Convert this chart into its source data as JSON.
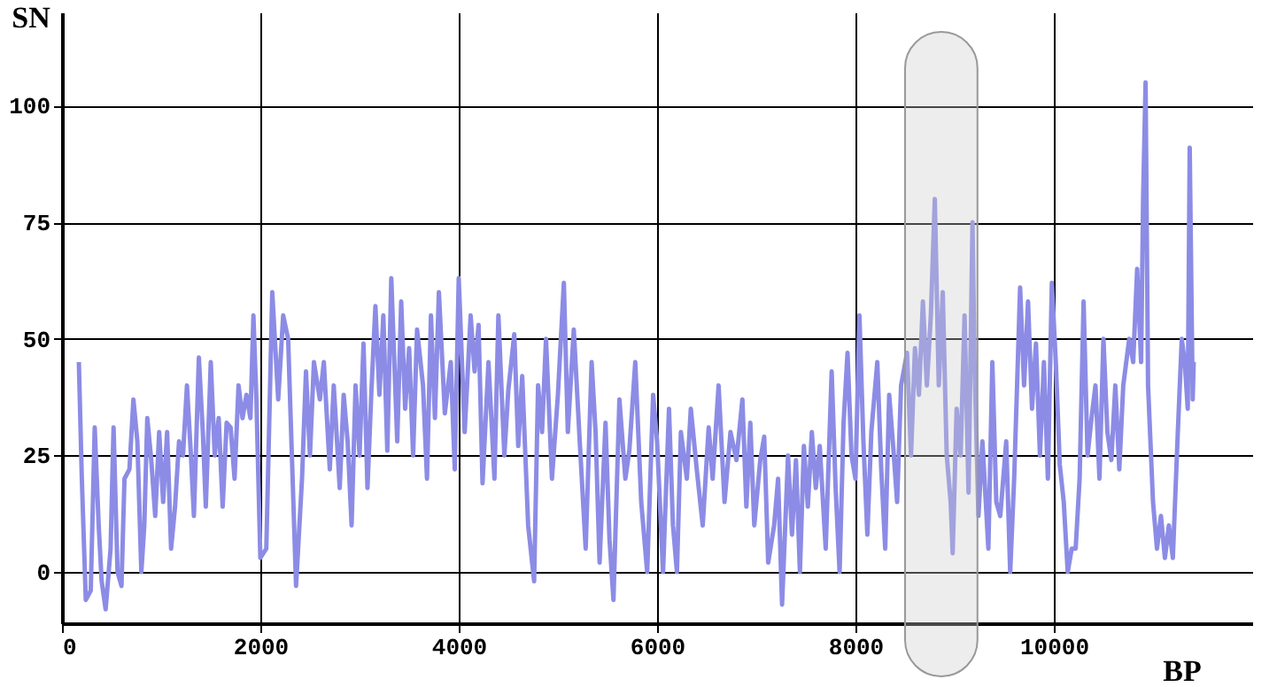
{
  "chart_data": {
    "type": "line",
    "xlabel": "BP",
    "ylabel": "SN",
    "xlim": [
      0,
      12000
    ],
    "xticks": [
      0,
      2000,
      4000,
      6000,
      8000,
      10000
    ],
    "ylim": [
      -11,
      120
    ],
    "yticks": [
      0,
      25,
      50,
      75,
      100
    ],
    "grid": true,
    "marker": "none",
    "line_style": "solid",
    "bands": [
      {
        "axis": "x",
        "from": 8500,
        "to": 9230,
        "color": "#cccccc"
      }
    ],
    "series": [
      {
        "color": "#8c8ce6",
        "x": [
          170,
          200,
          240,
          290,
          330,
          370,
          400,
          440,
          490,
          520,
          560,
          600,
          630,
          680,
          720,
          760,
          800,
          830,
          860,
          900,
          940,
          980,
          1020,
          1060,
          1100,
          1140,
          1180,
          1220,
          1260,
          1300,
          1330,
          1380,
          1420,
          1450,
          1500,
          1540,
          1580,
          1620,
          1660,
          1700,
          1740,
          1780,
          1820,
          1860,
          1900,
          1930,
          1960,
          2000,
          2060,
          2120,
          2180,
          2230,
          2280,
          2360,
          2420,
          2460,
          2500,
          2540,
          2600,
          2640,
          2700,
          2740,
          2800,
          2840,
          2880,
          2920,
          2960,
          3000,
          3040,
          3080,
          3120,
          3160,
          3200,
          3240,
          3280,
          3320,
          3380,
          3420,
          3460,
          3500,
          3540,
          3580,
          3640,
          3680,
          3720,
          3760,
          3800,
          3860,
          3920,
          3960,
          4000,
          4060,
          4120,
          4160,
          4200,
          4240,
          4300,
          4360,
          4400,
          4460,
          4500,
          4560,
          4600,
          4640,
          4700,
          4760,
          4800,
          4840,
          4880,
          4940,
          5000,
          5060,
          5100,
          5160,
          5220,
          5280,
          5340,
          5380,
          5420,
          5480,
          5520,
          5560,
          5620,
          5680,
          5720,
          5780,
          5840,
          5900,
          5960,
          6000,
          6060,
          6120,
          6160,
          6200,
          6240,
          6300,
          6340,
          6400,
          6460,
          6520,
          6560,
          6620,
          6680,
          6740,
          6800,
          6860,
          6900,
          6940,
          6980,
          7040,
          7080,
          7120,
          7180,
          7220,
          7260,
          7320,
          7360,
          7400,
          7440,
          7480,
          7520,
          7560,
          7600,
          7640,
          7700,
          7760,
          7800,
          7840,
          7880,
          7920,
          7960,
          8000,
          8040,
          8080,
          8120,
          8160,
          8220,
          8260,
          8300,
          8340,
          8380,
          8420,
          8460,
          8520,
          8560,
          8600,
          8640,
          8680,
          8720,
          8760,
          8800,
          8840,
          8880,
          8920,
          8960,
          8980,
          9020,
          9060,
          9100,
          9140,
          9180,
          9200,
          9240,
          9280,
          9340,
          9380,
          9420,
          9460,
          9520,
          9560,
          9600,
          9660,
          9700,
          9740,
          9780,
          9820,
          9860,
          9900,
          9940,
          9980,
          10020,
          10060,
          10100,
          10140,
          10180,
          10220,
          10260,
          10300,
          10340,
          10380,
          10420,
          10460,
          10500,
          10540,
          10580,
          10620,
          10660,
          10700,
          10760,
          10800,
          10840,
          10880,
          10900,
          10925,
          10950,
          11000,
          11040,
          11080,
          11120,
          11160,
          11200,
          11250,
          11290,
          11320,
          11350,
          11370,
          11400,
          11410
        ],
        "values": [
          45,
          20,
          -6,
          -4,
          31,
          10,
          -2,
          -8,
          5,
          31,
          0,
          -3,
          20,
          22,
          37,
          28,
          0,
          10,
          33,
          24,
          12,
          30,
          15,
          30,
          5,
          14,
          28,
          25,
          40,
          25,
          12,
          46,
          30,
          14,
          45,
          25,
          33,
          14,
          32,
          31,
          20,
          40,
          33,
          38,
          33,
          55,
          37,
          3,
          5,
          60,
          37,
          55,
          50,
          -3,
          20,
          43,
          25,
          45,
          37,
          45,
          22,
          40,
          18,
          38,
          28,
          10,
          40,
          25,
          49,
          18,
          39,
          57,
          38,
          55,
          26,
          63,
          28,
          58,
          35,
          48,
          25,
          52,
          40,
          20,
          55,
          33,
          60,
          34,
          45,
          22,
          63,
          30,
          55,
          43,
          53,
          19,
          45,
          20,
          55,
          25,
          39,
          51,
          27,
          42,
          10,
          -2,
          40,
          30,
          50,
          20,
          38,
          62,
          30,
          52,
          28,
          5,
          45,
          30,
          2,
          32,
          7,
          -6,
          37,
          20,
          26,
          45,
          15,
          0,
          38,
          28,
          0,
          35,
          10,
          0,
          30,
          20,
          35,
          22,
          10,
          31,
          20,
          40,
          15,
          30,
          24,
          37,
          14,
          32,
          10,
          24,
          29,
          2,
          10,
          20,
          -7,
          25,
          8,
          24,
          0,
          27,
          14,
          30,
          18,
          27,
          5,
          43,
          18,
          0,
          32,
          47,
          25,
          20,
          55,
          28,
          8,
          30,
          45,
          22,
          5,
          38,
          27,
          15,
          40,
          47,
          25,
          48,
          38,
          58,
          40,
          55,
          80,
          40,
          60,
          25,
          15,
          4,
          35,
          25,
          55,
          17,
          75,
          45,
          12,
          28,
          5,
          45,
          15,
          12,
          28,
          0,
          20,
          61,
          40,
          58,
          35,
          49,
          25,
          45,
          20,
          62,
          45,
          23,
          15,
          0,
          5,
          5,
          20,
          58,
          25,
          33,
          40,
          20,
          50,
          30,
          24,
          40,
          22,
          40,
          50,
          45,
          65,
          45,
          80,
          105,
          40,
          15,
          5,
          12,
          3,
          10,
          3,
          30,
          50,
          45,
          35,
          91,
          37,
          45
        ]
      }
    ]
  }
}
